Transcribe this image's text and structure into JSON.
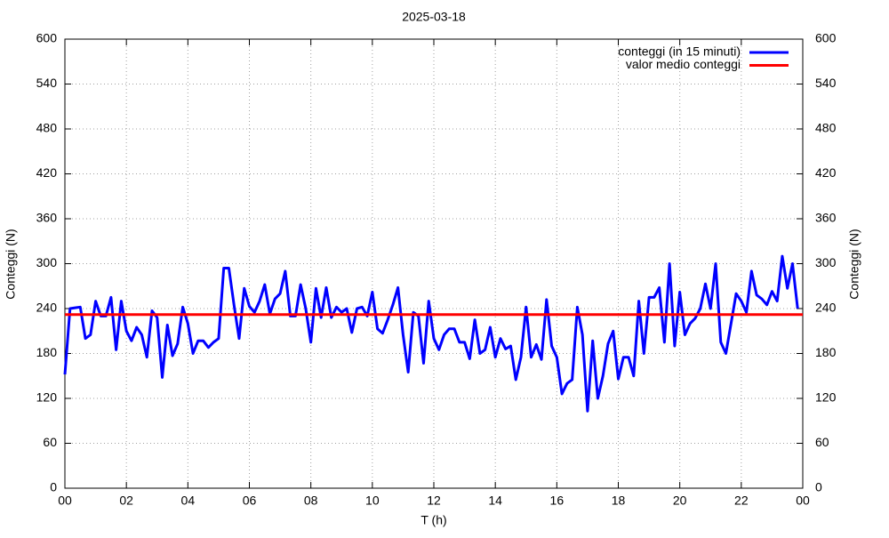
{
  "chart_data": {
    "type": "line",
    "title": "2025-03-18",
    "x_label": "T (h)",
    "y_label": "Conteggi (N)",
    "y2_label": "Conteggi (N)",
    "xlim": [
      0,
      1440
    ],
    "xticks": [
      {
        "value": 0,
        "label": "00"
      },
      {
        "value": 120,
        "label": "02"
      },
      {
        "value": 240,
        "label": "04"
      },
      {
        "value": 360,
        "label": "06"
      },
      {
        "value": 480,
        "label": "08"
      },
      {
        "value": 600,
        "label": "10"
      },
      {
        "value": 720,
        "label": "12"
      },
      {
        "value": 840,
        "label": "14"
      },
      {
        "value": 960,
        "label": "16"
      },
      {
        "value": 1080,
        "label": "18"
      },
      {
        "value": 1200,
        "label": "20"
      },
      {
        "value": 1320,
        "label": "22"
      },
      {
        "value": 1440,
        "label": "00"
      }
    ],
    "ylim": [
      0,
      600
    ],
    "yticks": [
      0,
      60,
      120,
      180,
      240,
      300,
      360,
      420,
      480,
      540,
      600
    ],
    "y2lim": [
      0,
      600
    ],
    "y2ticks": [
      0,
      60,
      120,
      180,
      240,
      300,
      360,
      420,
      480,
      540,
      600
    ],
    "grid": true,
    "legend": "top-right",
    "series": [
      {
        "name": "conteggi (in 15 minuti)",
        "color": "#0000ff",
        "x": [
          0,
          10,
          20,
          30,
          40,
          50,
          60,
          70,
          80,
          90,
          100,
          110,
          120,
          130,
          140,
          150,
          160,
          170,
          180,
          190,
          200,
          210,
          220,
          230,
          240,
          250,
          260,
          270,
          280,
          290,
          300,
          310,
          320,
          330,
          340,
          350,
          360,
          370,
          380,
          390,
          400,
          410,
          420,
          430,
          440,
          450,
          460,
          470,
          480,
          490,
          500,
          510,
          520,
          530,
          540,
          550,
          560,
          570,
          580,
          590,
          600,
          610,
          620,
          630,
          640,
          650,
          660,
          670,
          680,
          690,
          700,
          710,
          720,
          730,
          740,
          750,
          760,
          770,
          780,
          790,
          800,
          810,
          820,
          830,
          840,
          850,
          860,
          870,
          880,
          890,
          900,
          910,
          920,
          930,
          940,
          950,
          960,
          970,
          980,
          990,
          1000,
          1010,
          1020,
          1030,
          1040,
          1050,
          1060,
          1070,
          1080,
          1090,
          1100,
          1110,
          1120,
          1130,
          1140,
          1150,
          1160,
          1170,
          1180,
          1190,
          1200,
          1210,
          1220,
          1230,
          1240,
          1250,
          1260,
          1270,
          1280,
          1290,
          1300,
          1310,
          1320,
          1330,
          1340,
          1350,
          1360,
          1370,
          1380,
          1390,
          1400,
          1410,
          1420,
          1430
        ],
        "values": [
          152,
          240,
          241,
          242,
          200,
          205,
          250,
          230,
          230,
          255,
          185,
          250,
          210,
          197,
          215,
          205,
          175,
          237,
          228,
          148,
          218,
          177,
          193,
          242,
          220,
          180,
          197,
          197,
          188,
          195,
          200,
          294,
          294,
          245,
          200,
          267,
          243,
          235,
          250,
          272,
          233,
          253,
          260,
          290,
          230,
          230,
          272,
          240,
          195,
          267,
          228,
          268,
          228,
          242,
          235,
          240,
          208,
          240,
          242,
          230,
          262,
          213,
          207,
          225,
          245,
          268,
          205,
          155,
          235,
          230,
          167,
          250,
          200,
          185,
          205,
          213,
          213,
          195,
          195,
          173,
          225,
          180,
          185,
          215,
          175,
          200,
          186,
          190,
          145,
          175,
          242,
          175,
          192,
          172,
          252,
          190,
          175,
          126,
          140,
          145,
          242,
          205,
          103,
          197,
          120,
          150,
          193,
          210,
          146,
          175,
          175,
          150,
          250,
          180,
          255,
          255,
          268,
          195,
          300,
          190,
          262,
          205,
          220,
          227,
          240,
          273,
          240,
          300,
          195,
          180,
          220,
          260,
          250,
          235,
          290,
          258,
          253,
          245,
          263,
          250,
          310,
          267,
          300,
          240
        ]
      },
      {
        "name": "valor medio conteggi",
        "color": "#ff0000",
        "x": [
          0,
          1440
        ],
        "values": [
          232,
          232
        ]
      }
    ]
  }
}
